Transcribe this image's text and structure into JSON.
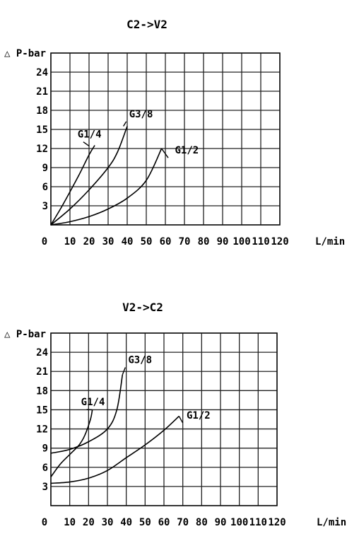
{
  "chart_data": [
    {
      "type": "line",
      "title": "C2->V2",
      "ylabel": "△ P-bar",
      "xlabel": "L/min",
      "x_ticks": [
        "0",
        "10",
        "20",
        "30",
        "40",
        "50",
        "60",
        "70",
        "80",
        "90",
        "100",
        "110",
        "120"
      ],
      "y_ticks": [
        "3",
        "6",
        "9",
        "12",
        "15",
        "18",
        "21",
        "24"
      ],
      "xlim": [
        0,
        120
      ],
      "ylim": [
        0,
        27
      ],
      "grid": true,
      "series": [
        {
          "name": "G1/4",
          "label_at": [
            14,
            13.7
          ],
          "leader_to": [
            20,
            12.4
          ],
          "x": [
            0,
            5,
            10,
            15,
            20,
            23
          ],
          "y": [
            0,
            2.5,
            5.2,
            8.0,
            11.0,
            12.5
          ]
        },
        {
          "name": "G3/8",
          "label_at": [
            41,
            16.9
          ],
          "leader_to": [
            38,
            15.5
          ],
          "x": [
            0,
            10,
            20,
            30,
            35,
            40
          ],
          "y": [
            0,
            2.5,
            5.5,
            9.0,
            11.5,
            15.5
          ]
        },
        {
          "name": "G1/2",
          "label_at": [
            65,
            11.2
          ],
          "leader_to": [
            58,
            12.0
          ],
          "x": [
            0,
            10,
            20,
            30,
            40,
            50,
            58
          ],
          "y": [
            0,
            0.5,
            1.3,
            2.5,
            4.2,
            7.0,
            12.0
          ]
        }
      ]
    },
    {
      "type": "line",
      "title": "V2->C2",
      "ylabel": "△ P-bar",
      "xlabel": "L/min",
      "x_ticks": [
        "0",
        "10",
        "20",
        "30",
        "40",
        "50",
        "60",
        "70",
        "80",
        "90",
        "100",
        "110",
        "120"
      ],
      "y_ticks": [
        "3",
        "6",
        "9",
        "12",
        "15",
        "18",
        "21",
        "24"
      ],
      "xlim": [
        0,
        120
      ],
      "ylim": [
        0,
        27
      ],
      "grid": true,
      "series": [
        {
          "name": "G1/4",
          "label_at": [
            16,
            15.7
          ],
          "leader_to": [
            22,
            15.0
          ],
          "x": [
            0,
            5,
            10,
            15,
            18,
            21,
            22
          ],
          "y": [
            4.5,
            6.5,
            8.0,
            9.5,
            11.0,
            13.5,
            15.0
          ]
        },
        {
          "name": "G3/8",
          "label_at": [
            41,
            22.3
          ],
          "leader_to": [
            38,
            20.5
          ],
          "x": [
            0,
            10,
            20,
            30,
            35,
            38
          ],
          "y": [
            8.2,
            8.8,
            10.0,
            12.0,
            15.0,
            20.5
          ]
        },
        {
          "name": "G1/2",
          "label_at": [
            72,
            13.6
          ],
          "leader_to": [
            68,
            14.0
          ],
          "x": [
            0,
            10,
            20,
            30,
            40,
            50,
            60,
            68
          ],
          "y": [
            3.5,
            3.7,
            4.3,
            5.5,
            7.5,
            9.5,
            11.8,
            14.0
          ]
        }
      ]
    }
  ]
}
